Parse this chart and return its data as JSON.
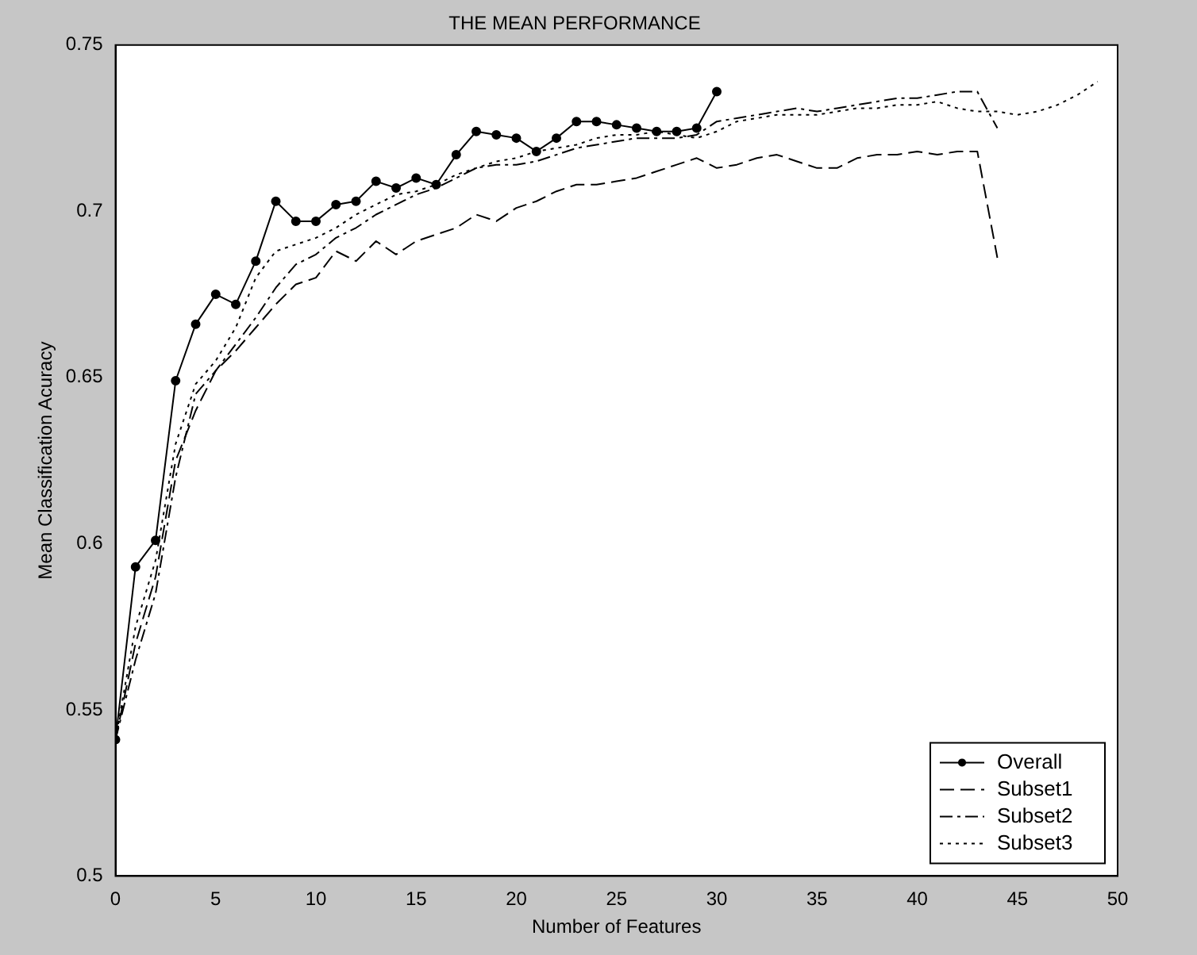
{
  "chart_data": {
    "type": "line",
    "title": "THE MEAN PERFORMANCE",
    "xlabel": "Number of Features",
    "ylabel": "Mean Classification Acuracy",
    "xlim": [
      0,
      50
    ],
    "xticks": [
      0,
      5,
      10,
      15,
      20,
      25,
      30,
      35,
      40,
      45,
      50
    ],
    "ylim": [
      0.5,
      0.75
    ],
    "yticks": [
      0.5,
      0.55,
      0.6,
      0.65,
      0.7,
      0.75
    ],
    "grid": false,
    "legend": "bottom right",
    "series": [
      {
        "name": "Overall",
        "color": "#000000",
        "marker": "circle",
        "line_style": "solid",
        "x": [
          0,
          1,
          2,
          3,
          4,
          5,
          6,
          7,
          8,
          9,
          10,
          11,
          12,
          13,
          14,
          15,
          16,
          17,
          18,
          19,
          20,
          21,
          22,
          23,
          24,
          25,
          26,
          27,
          28,
          29,
          30
        ],
        "values": [
          0.541,
          0.593,
          0.601,
          0.649,
          0.666,
          0.675,
          0.672,
          0.685,
          0.703,
          0.697,
          0.697,
          0.702,
          0.703,
          0.709,
          0.707,
          0.71,
          0.708,
          0.717,
          0.724,
          0.723,
          0.722,
          0.718,
          0.722,
          0.727,
          0.727,
          0.726,
          0.725,
          0.724,
          0.724,
          0.725,
          0.736
        ]
      },
      {
        "name": "Subset1",
        "color": "#000000",
        "marker": "none",
        "line_style": "dashed",
        "x": [
          0,
          1,
          2,
          3,
          4,
          5,
          6,
          7,
          8,
          9,
          10,
          11,
          12,
          13,
          14,
          15,
          16,
          17,
          18,
          19,
          20,
          21,
          22,
          23,
          24,
          25,
          26,
          27,
          28,
          29,
          30,
          31,
          32,
          33,
          34,
          35,
          36,
          37,
          38,
          39,
          40,
          41,
          42,
          43,
          44
        ],
        "values": [
          0.541,
          0.57,
          0.59,
          0.625,
          0.64,
          0.652,
          0.658,
          0.665,
          0.672,
          0.678,
          0.68,
          0.688,
          0.685,
          0.691,
          0.687,
          0.691,
          0.693,
          0.695,
          0.699,
          0.697,
          0.701,
          0.703,
          0.706,
          0.708,
          0.708,
          0.709,
          0.71,
          0.712,
          0.714,
          0.716,
          0.713,
          0.714,
          0.716,
          0.717,
          0.715,
          0.713,
          0.713,
          0.716,
          0.717,
          0.717,
          0.718,
          0.717,
          0.718,
          0.718,
          0.686
        ]
      },
      {
        "name": "Subset2",
        "color": "#000000",
        "marker": "none",
        "line_style": "dashdot",
        "x": [
          0,
          1,
          2,
          3,
          4,
          5,
          6,
          7,
          8,
          9,
          10,
          11,
          12,
          13,
          14,
          15,
          16,
          17,
          18,
          19,
          20,
          21,
          22,
          23,
          24,
          25,
          26,
          27,
          28,
          29,
          30,
          31,
          32,
          33,
          34,
          35,
          36,
          37,
          38,
          39,
          40,
          41,
          42,
          43,
          44
        ],
        "values": [
          0.541,
          0.565,
          0.585,
          0.62,
          0.645,
          0.652,
          0.66,
          0.668,
          0.677,
          0.684,
          0.687,
          0.692,
          0.695,
          0.699,
          0.702,
          0.705,
          0.707,
          0.71,
          0.713,
          0.714,
          0.714,
          0.715,
          0.717,
          0.719,
          0.72,
          0.721,
          0.722,
          0.722,
          0.722,
          0.723,
          0.727,
          0.728,
          0.729,
          0.73,
          0.731,
          0.73,
          0.731,
          0.732,
          0.733,
          0.734,
          0.734,
          0.735,
          0.736,
          0.736,
          0.725
        ]
      },
      {
        "name": "Subset3",
        "color": "#000000",
        "marker": "none",
        "line_style": "dotted",
        "x": [
          0,
          1,
          2,
          3,
          4,
          5,
          6,
          7,
          8,
          9,
          10,
          11,
          12,
          13,
          14,
          15,
          16,
          17,
          18,
          19,
          20,
          21,
          22,
          23,
          24,
          25,
          26,
          27,
          28,
          29,
          30,
          31,
          32,
          33,
          34,
          35,
          36,
          37,
          38,
          39,
          40,
          41,
          42,
          43,
          44,
          45,
          46,
          47,
          48,
          49
        ],
        "values": [
          0.541,
          0.575,
          0.595,
          0.63,
          0.648,
          0.655,
          0.665,
          0.68,
          0.688,
          0.69,
          0.692,
          0.695,
          0.699,
          0.702,
          0.705,
          0.706,
          0.708,
          0.711,
          0.713,
          0.715,
          0.716,
          0.718,
          0.719,
          0.72,
          0.722,
          0.723,
          0.723,
          0.724,
          0.723,
          0.722,
          0.724,
          0.727,
          0.728,
          0.729,
          0.729,
          0.729,
          0.73,
          0.731,
          0.731,
          0.732,
          0.732,
          0.733,
          0.731,
          0.73,
          0.73,
          0.729,
          0.73,
          0.732,
          0.735,
          0.739
        ]
      }
    ]
  }
}
